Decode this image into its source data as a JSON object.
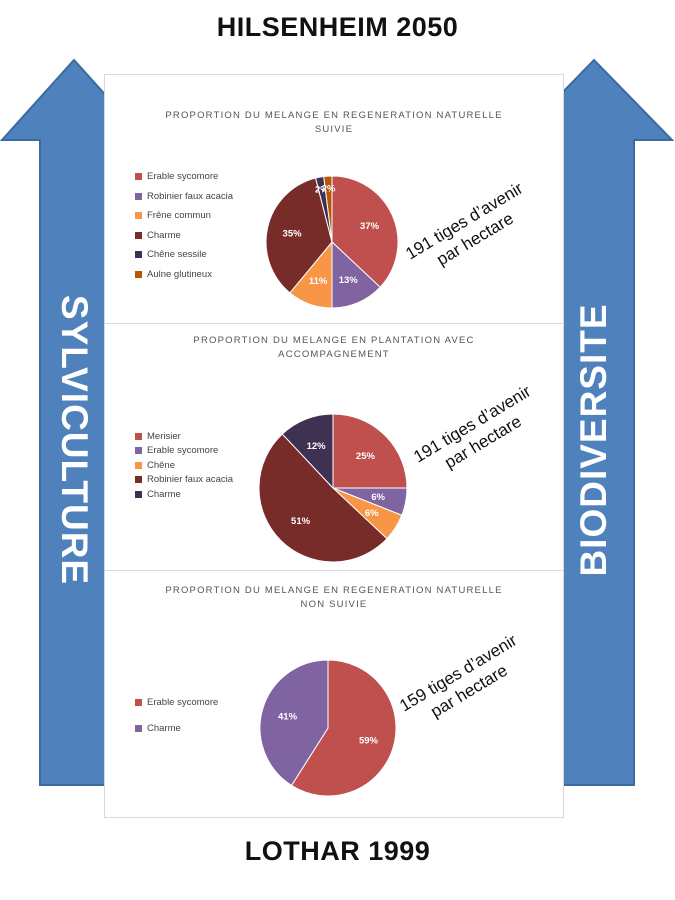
{
  "page": {
    "top_title": "HILSENHEIM  2050",
    "bottom_title": "LOTHAR 1999",
    "left_arrow_label": "SYLVICULTURE",
    "right_arrow_label": "BIODIVERSITE",
    "arrow_color": "#4f81bd",
    "arrow_border": "#3a6a9e"
  },
  "chart_data": [
    {
      "type": "pie",
      "title": "PROPORTION DU MELANGE EN REGENERATION NATURELLE SUIVIE",
      "title_lines": [
        "PROPORTION DU MELANGE EN REGENERATION NATURELLE",
        "SUIVIE"
      ],
      "stems_text": [
        "191 tiges d’avenir",
        "par hectare"
      ],
      "slices": [
        {
          "name": "Erable sycomore",
          "value": 37,
          "label": "37%",
          "color": "#c0504d"
        },
        {
          "name": "Robinier faux acacia",
          "value": 13,
          "label": "13%",
          "color": "#8064a2"
        },
        {
          "name": "Frêne commun",
          "value": 11,
          "label": "11%",
          "color": "#f79646"
        },
        {
          "name": "Charme",
          "value": 35,
          "label": "35%",
          "color": "#772c2a"
        },
        {
          "name": "Chêne sessile",
          "value": 2,
          "label": "2%",
          "color": "#3f3151"
        },
        {
          "name": "Aulne glutineux",
          "value": 2,
          "label": "2%",
          "color": "#b65708"
        }
      ],
      "legend_placement": "left"
    },
    {
      "type": "pie",
      "title": "PROPORTION DU MELANGE EN PLANTATION AVEC ACCOMPAGNEMENT",
      "title_lines": [
        "PROPORTION DU MELANGE EN PLANTATION AVEC",
        "ACCOMPAGNEMENT"
      ],
      "stems_text": [
        "191 tiges d’avenir",
        "par hectare"
      ],
      "slices": [
        {
          "name": "Merisier",
          "value": 25,
          "label": "25%",
          "color": "#c0504d"
        },
        {
          "name": "Erable sycomore",
          "value": 6,
          "label": "6%",
          "color": "#8064a2"
        },
        {
          "name": "Chêne",
          "value": 6,
          "label": "6%",
          "color": "#f79646"
        },
        {
          "name": "Robinier faux acacia",
          "value": 51,
          "label": "51%",
          "color": "#772c2a"
        },
        {
          "name": "Charme",
          "value": 12,
          "label": "12%",
          "color": "#3f3151"
        }
      ],
      "legend_placement": "left"
    },
    {
      "type": "pie",
      "title": "PROPORTION DU MELANGE EN REGENERATION NATURELLE NON SUIVIE",
      "title_lines": [
        "PROPORTION DU MELANGE EN REGENERATION NATURELLE",
        "NON SUIVIE"
      ],
      "stems_text": [
        "159 tiges d’avenir",
        "par hectare"
      ],
      "slices": [
        {
          "name": "Erable sycomore",
          "value": 59,
          "label": "59%",
          "color": "#c0504d"
        },
        {
          "name": "Charme",
          "value": 41,
          "label": "41%",
          "color": "#8064a2"
        }
      ],
      "legend_placement": "left"
    }
  ]
}
